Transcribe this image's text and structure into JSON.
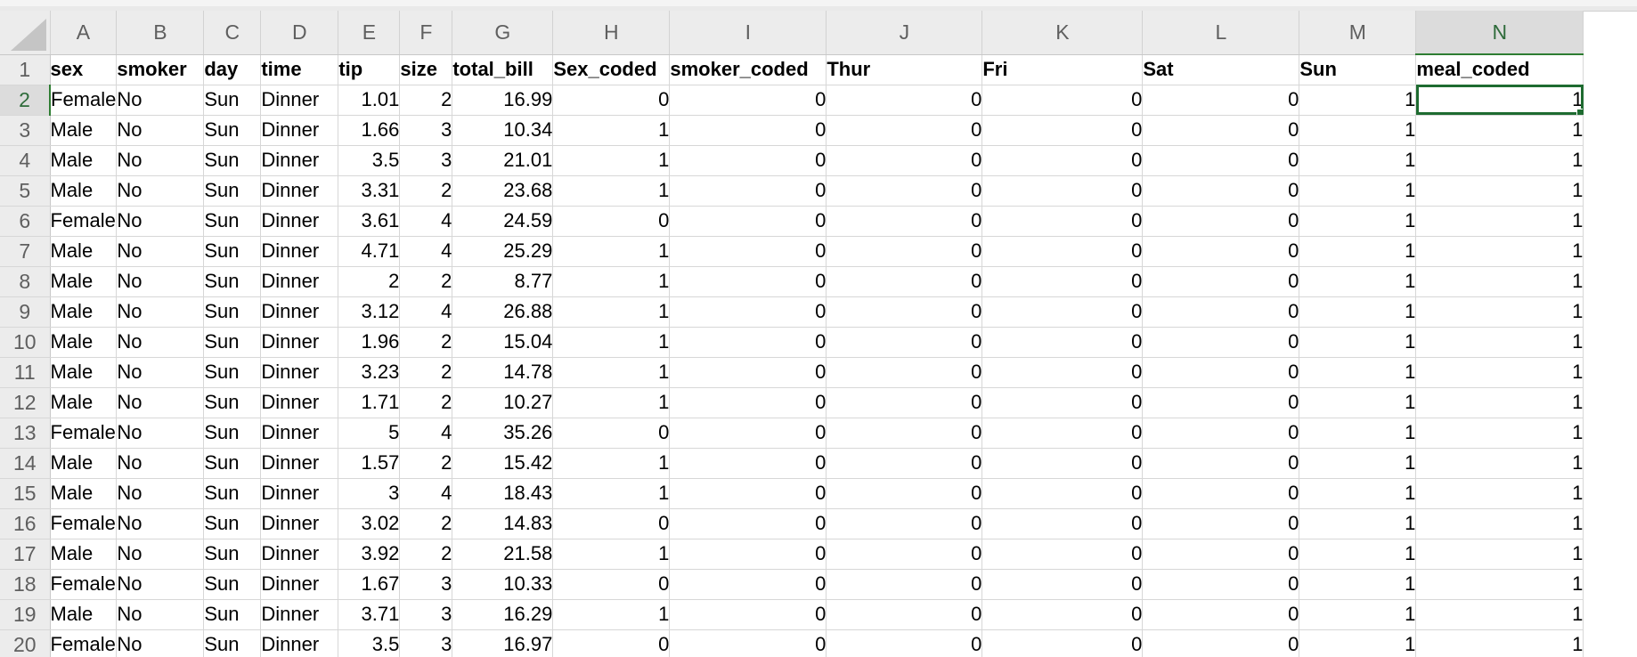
{
  "columns": [
    "A",
    "B",
    "C",
    "D",
    "E",
    "F",
    "G",
    "H",
    "I",
    "J",
    "K",
    "L",
    "M",
    "N"
  ],
  "selected_column": "N",
  "headers": [
    "sex",
    "smoker",
    "day",
    "time",
    "tip",
    "size",
    "total_bill",
    "Sex_coded",
    "smoker_coded",
    "Thur",
    "Fri",
    "Sat",
    "Sun",
    "meal_coded"
  ],
  "numeric_columns": [
    false,
    false,
    false,
    false,
    true,
    true,
    true,
    true,
    true,
    true,
    true,
    true,
    true,
    true
  ],
  "active_cell": "N2",
  "rows": [
    {
      "num": "1",
      "cells": [
        "sex",
        "smoker",
        "day",
        "time",
        "tip",
        "size",
        "total_bill",
        "Sex_coded",
        "smoker_coded",
        "Thur",
        "Fri",
        "Sat",
        "Sun",
        "meal_coded"
      ]
    },
    {
      "num": "2",
      "cells": [
        "Female",
        "No",
        "Sun",
        "Dinner",
        "1.01",
        "2",
        "16.99",
        "0",
        "0",
        "0",
        "0",
        "0",
        "1",
        "1"
      ]
    },
    {
      "num": "3",
      "cells": [
        "Male",
        "No",
        "Sun",
        "Dinner",
        "1.66",
        "3",
        "10.34",
        "1",
        "0",
        "0",
        "0",
        "0",
        "1",
        "1"
      ]
    },
    {
      "num": "4",
      "cells": [
        "Male",
        "No",
        "Sun",
        "Dinner",
        "3.5",
        "3",
        "21.01",
        "1",
        "0",
        "0",
        "0",
        "0",
        "1",
        "1"
      ]
    },
    {
      "num": "5",
      "cells": [
        "Male",
        "No",
        "Sun",
        "Dinner",
        "3.31",
        "2",
        "23.68",
        "1",
        "0",
        "0",
        "0",
        "0",
        "1",
        "1"
      ]
    },
    {
      "num": "6",
      "cells": [
        "Female",
        "No",
        "Sun",
        "Dinner",
        "3.61",
        "4",
        "24.59",
        "0",
        "0",
        "0",
        "0",
        "0",
        "1",
        "1"
      ]
    },
    {
      "num": "7",
      "cells": [
        "Male",
        "No",
        "Sun",
        "Dinner",
        "4.71",
        "4",
        "25.29",
        "1",
        "0",
        "0",
        "0",
        "0",
        "1",
        "1"
      ]
    },
    {
      "num": "8",
      "cells": [
        "Male",
        "No",
        "Sun",
        "Dinner",
        "2",
        "2",
        "8.77",
        "1",
        "0",
        "0",
        "0",
        "0",
        "1",
        "1"
      ]
    },
    {
      "num": "9",
      "cells": [
        "Male",
        "No",
        "Sun",
        "Dinner",
        "3.12",
        "4",
        "26.88",
        "1",
        "0",
        "0",
        "0",
        "0",
        "1",
        "1"
      ]
    },
    {
      "num": "10",
      "cells": [
        "Male",
        "No",
        "Sun",
        "Dinner",
        "1.96",
        "2",
        "15.04",
        "1",
        "0",
        "0",
        "0",
        "0",
        "1",
        "1"
      ]
    },
    {
      "num": "11",
      "cells": [
        "Male",
        "No",
        "Sun",
        "Dinner",
        "3.23",
        "2",
        "14.78",
        "1",
        "0",
        "0",
        "0",
        "0",
        "1",
        "1"
      ]
    },
    {
      "num": "12",
      "cells": [
        "Male",
        "No",
        "Sun",
        "Dinner",
        "1.71",
        "2",
        "10.27",
        "1",
        "0",
        "0",
        "0",
        "0",
        "1",
        "1"
      ]
    },
    {
      "num": "13",
      "cells": [
        "Female",
        "No",
        "Sun",
        "Dinner",
        "5",
        "4",
        "35.26",
        "0",
        "0",
        "0",
        "0",
        "0",
        "1",
        "1"
      ]
    },
    {
      "num": "14",
      "cells": [
        "Male",
        "No",
        "Sun",
        "Dinner",
        "1.57",
        "2",
        "15.42",
        "1",
        "0",
        "0",
        "0",
        "0",
        "1",
        "1"
      ]
    },
    {
      "num": "15",
      "cells": [
        "Male",
        "No",
        "Sun",
        "Dinner",
        "3",
        "4",
        "18.43",
        "1",
        "0",
        "0",
        "0",
        "0",
        "1",
        "1"
      ]
    },
    {
      "num": "16",
      "cells": [
        "Female",
        "No",
        "Sun",
        "Dinner",
        "3.02",
        "2",
        "14.83",
        "0",
        "0",
        "0",
        "0",
        "0",
        "1",
        "1"
      ]
    },
    {
      "num": "17",
      "cells": [
        "Male",
        "No",
        "Sun",
        "Dinner",
        "3.92",
        "2",
        "21.58",
        "1",
        "0",
        "0",
        "0",
        "0",
        "1",
        "1"
      ]
    },
    {
      "num": "18",
      "cells": [
        "Female",
        "No",
        "Sun",
        "Dinner",
        "1.67",
        "3",
        "10.33",
        "0",
        "0",
        "0",
        "0",
        "0",
        "1",
        "1"
      ]
    },
    {
      "num": "19",
      "cells": [
        "Male",
        "No",
        "Sun",
        "Dinner",
        "3.71",
        "3",
        "16.29",
        "1",
        "0",
        "0",
        "0",
        "0",
        "1",
        "1"
      ]
    },
    {
      "num": "20",
      "cells": [
        "Female",
        "No",
        "Sun",
        "Dinner",
        "3.5",
        "3",
        "16.97",
        "0",
        "0",
        "0",
        "0",
        "0",
        "1",
        "1"
      ]
    }
  ]
}
